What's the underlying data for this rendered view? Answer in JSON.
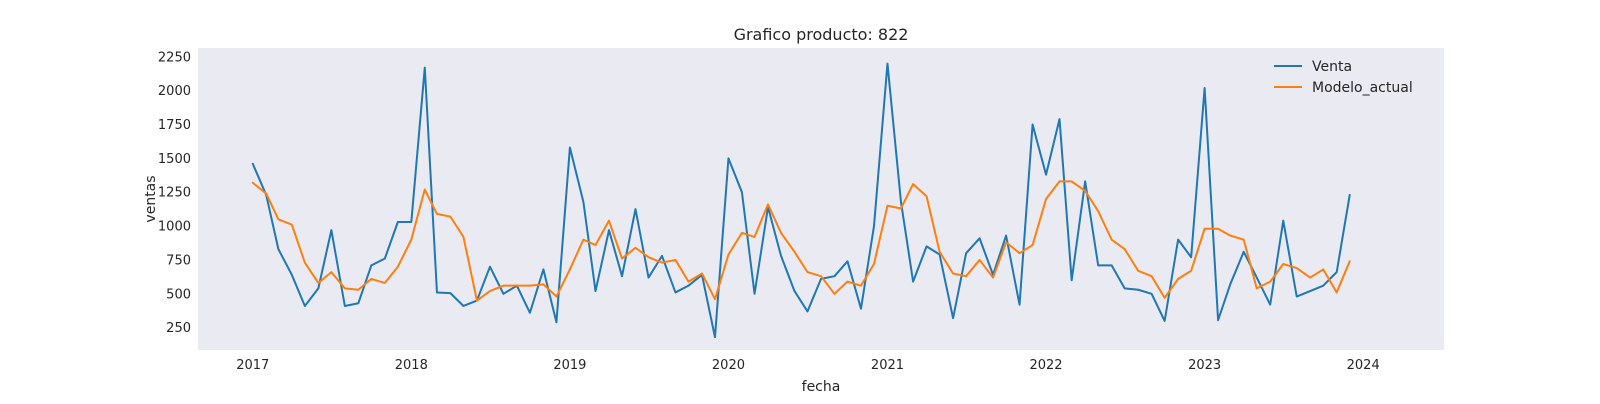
{
  "chart_data": {
    "type": "line",
    "title": "Grafico producto: 822",
    "xlabel": "fecha",
    "ylabel": "ventas",
    "xlim": [
      "2016-08-28",
      "2024-07-05"
    ],
    "ylim": [
      85,
      2315
    ],
    "yticks": [
      250,
      500,
      750,
      1000,
      1250,
      1500,
      1750,
      2000,
      2250
    ],
    "xticks": [
      "2017",
      "2018",
      "2019",
      "2020",
      "2021",
      "2022",
      "2023",
      "2024"
    ],
    "grid": false,
    "legend_position": "top-right",
    "x": [
      "2017-01",
      "2017-02",
      "2017-03",
      "2017-04",
      "2017-05",
      "2017-06",
      "2017-07",
      "2017-08",
      "2017-09",
      "2017-10",
      "2017-11",
      "2017-12",
      "2018-01",
      "2018-02",
      "2018-03",
      "2018-04",
      "2018-05",
      "2018-06",
      "2018-07",
      "2018-08",
      "2018-09",
      "2018-10",
      "2018-11",
      "2018-12",
      "2019-01",
      "2019-02",
      "2019-03",
      "2019-04",
      "2019-05",
      "2019-06",
      "2019-07",
      "2019-08",
      "2019-09",
      "2019-10",
      "2019-11",
      "2019-12",
      "2020-01",
      "2020-02",
      "2020-03",
      "2020-04",
      "2020-05",
      "2020-06",
      "2020-07",
      "2020-08",
      "2020-09",
      "2020-10",
      "2020-11",
      "2020-12",
      "2021-01",
      "2021-02",
      "2021-03",
      "2021-04",
      "2021-05",
      "2021-06",
      "2021-07",
      "2021-08",
      "2021-09",
      "2021-10",
      "2021-11",
      "2021-12",
      "2022-01",
      "2022-02",
      "2022-03",
      "2022-04",
      "2022-05",
      "2022-06",
      "2022-07",
      "2022-08",
      "2022-09",
      "2022-10",
      "2022-11",
      "2022-12",
      "2023-01",
      "2023-02",
      "2023-03",
      "2023-04",
      "2023-05",
      "2023-06",
      "2023-07",
      "2023-08",
      "2023-09",
      "2023-10",
      "2023-11",
      "2023-12"
    ],
    "series": [
      {
        "name": "Venta",
        "color": "#1f77b4",
        "values": [
          1460,
          1230,
          830,
          640,
          410,
          540,
          970,
          410,
          430,
          710,
          760,
          1030,
          1030,
          2170,
          510,
          505,
          410,
          450,
          700,
          500,
          560,
          360,
          680,
          290,
          1580,
          1180,
          520,
          970,
          630,
          1125,
          620,
          780,
          510,
          560,
          640,
          180,
          1500,
          1250,
          500,
          1140,
          780,
          520,
          370,
          610,
          630,
          740,
          390,
          1000,
          2200,
          1180,
          590,
          850,
          790,
          320,
          800,
          910,
          640,
          930,
          420,
          1750,
          1380,
          1790,
          600,
          1330,
          710,
          710,
          540,
          530,
          500,
          300,
          900,
          770,
          2020,
          305,
          570,
          810,
          620,
          420,
          1040,
          480,
          520,
          560,
          660,
          1230
        ]
      },
      {
        "name": "Modelo_actual",
        "color": "#ff7f0e",
        "values": [
          1320,
          1240,
          1050,
          1010,
          730,
          580,
          660,
          540,
          530,
          610,
          580,
          700,
          900,
          1270,
          1090,
          1070,
          920,
          450,
          520,
          560,
          560,
          560,
          570,
          480,
          680,
          900,
          860,
          1040,
          760,
          840,
          770,
          730,
          750,
          590,
          650,
          460,
          790,
          950,
          920,
          1160,
          950,
          810,
          660,
          630,
          500,
          590,
          560,
          720,
          1150,
          1130,
          1310,
          1220,
          810,
          650,
          630,
          750,
          620,
          880,
          800,
          860,
          1200,
          1330,
          1330,
          1260,
          1110,
          900,
          830,
          670,
          630,
          470,
          610,
          670,
          980,
          980,
          930,
          900,
          540,
          590,
          720,
          690,
          620,
          680,
          510,
          740
        ]
      }
    ]
  }
}
